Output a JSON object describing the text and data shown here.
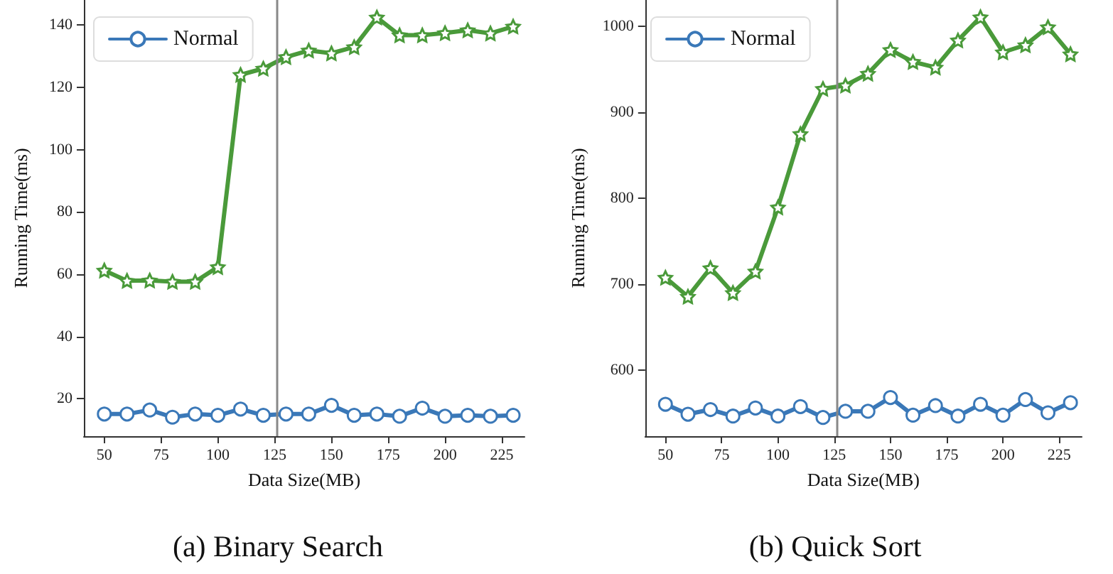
{
  "chart_data": [
    {
      "type": "line",
      "title": "(a) Binary Search",
      "xlabel": "Data Size(MB)",
      "ylabel": "Running Time(ms)",
      "x": [
        50,
        60,
        70,
        80,
        90,
        100,
        110,
        120,
        130,
        140,
        150,
        160,
        170,
        180,
        190,
        200,
        210,
        220,
        230
      ],
      "series": [
        {
          "color": "#4a9a3a",
          "marker": "star",
          "values": [
            61.2,
            57.9,
            58,
            57.6,
            57.6,
            62.3,
            124,
            126,
            129.7,
            131.8,
            130.9,
            132.9,
            142.4,
            136.7,
            136.7,
            137.4,
            138.3,
            137.3,
            139.5
          ]
        },
        {
          "name": "Normal",
          "color": "#3a78b8",
          "marker": "circle",
          "values": [
            15.1,
            15.1,
            16.4,
            14.1,
            15.1,
            14.7,
            16.7,
            14.7,
            15.1,
            15.1,
            17.9,
            14.7,
            15.1,
            14.4,
            17,
            14.4,
            14.7,
            14.4,
            14.7
          ]
        }
      ],
      "xlim": [
        41,
        235
      ],
      "xticks": [
        50,
        75,
        100,
        125,
        150,
        175,
        200,
        225
      ],
      "ylim": [
        8,
        148
      ],
      "yticks": [
        20,
        40,
        60,
        80,
        100,
        120,
        140
      ],
      "ref_lines": [
        {
          "axis": "x",
          "value": 126,
          "color": "#888888"
        }
      ],
      "grid": false,
      "legend": "top left",
      "line_style": "solid"
    },
    {
      "type": "line",
      "title": "(b) Quick Sort",
      "xlabel": "Data Size(MB)",
      "ylabel": "Running Time(ms)",
      "x": [
        50,
        60,
        70,
        80,
        90,
        100,
        110,
        120,
        130,
        140,
        150,
        160,
        170,
        180,
        190,
        200,
        210,
        220,
        230
      ],
      "series": [
        {
          "color": "#4a9a3a",
          "marker": "star",
          "values": [
            707.7,
            685.6,
            718.8,
            690,
            714.9,
            789.5,
            875,
            927.6,
            931.5,
            945.3,
            972.9,
            959,
            952.5,
            984,
            1011,
            970.2,
            978.5,
            999.4,
            968
          ]
        },
        {
          "name": "Normal",
          "color": "#3a78b8",
          "marker": "circle",
          "values": [
            560.2,
            548.6,
            554,
            546.4,
            555.8,
            546.4,
            557.5,
            544.8,
            552,
            552,
            568,
            547.5,
            558.6,
            546.4,
            560.2,
            547.5,
            565.7,
            550.3,
            562
          ]
        }
      ],
      "xlim": [
        41,
        235
      ],
      "xticks": [
        50,
        75,
        100,
        125,
        150,
        175,
        200,
        225
      ],
      "ylim": [
        523,
        1031
      ],
      "yticks": [
        600,
        700,
        800,
        900,
        1000
      ],
      "ref_lines": [
        {
          "axis": "x",
          "value": 126,
          "color": "#888888"
        }
      ],
      "grid": false,
      "legend": "top left",
      "line_style": "solid"
    }
  ]
}
